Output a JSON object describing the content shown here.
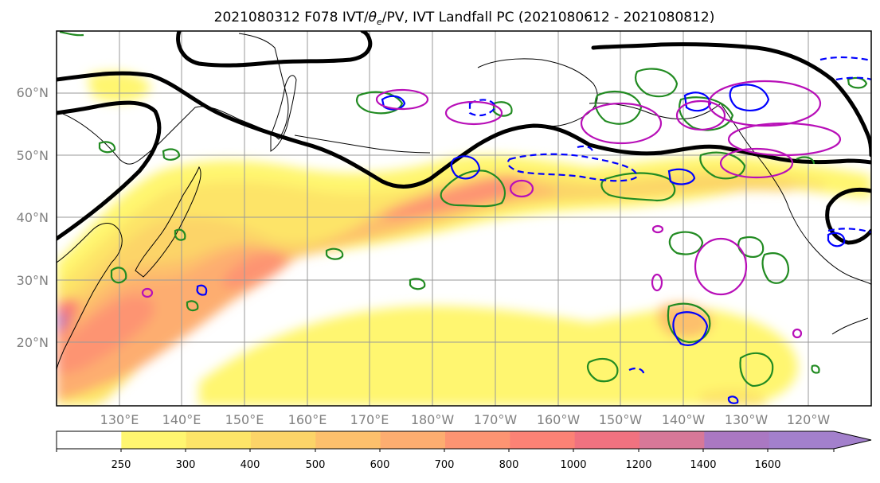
{
  "title": {
    "prefix": "2021080312 F078 IVT/",
    "theta": "θ",
    "theta_sub": "e",
    "suffix": "/PV, IVT Landfall PC (2021080612 - 2021080812)"
  },
  "map": {
    "lat_labels": [
      "60°N",
      "50°N",
      "40°N",
      "30°N",
      "20°N"
    ],
    "lon_labels": [
      "130°E",
      "140°E",
      "150°E",
      "160°E",
      "170°E",
      "180°W",
      "170°W",
      "160°W",
      "150°W",
      "140°W",
      "130°W",
      "120°W"
    ],
    "lat_values": [
      60,
      50,
      40,
      30,
      20
    ],
    "lon_values": [
      130,
      140,
      150,
      160,
      170,
      180,
      190,
      200,
      210,
      220,
      230,
      240
    ],
    "extent": {
      "lon": [
        120,
        250
      ],
      "lat": [
        10,
        70
      ]
    },
    "grid": true
  },
  "colorbar": {
    "tick_labels": [
      "250",
      "300",
      "400",
      "500",
      "600",
      "700",
      "800",
      "1000",
      "1200",
      "1400",
      "1600"
    ],
    "levels": [
      250,
      300,
      400,
      500,
      600,
      700,
      800,
      1000,
      1200,
      1400,
      1600
    ],
    "colors": [
      "#ffffff",
      "#fff670",
      "#fde468",
      "#fcd468",
      "#fdc06c",
      "#fdad70",
      "#fd9472",
      "#fc8275",
      "#f07280",
      "#d77898",
      "#aa78c2",
      "#a380cc"
    ],
    "extend": "max"
  },
  "contour_colors": {
    "theta_e": "#000000",
    "pv_positive": "#228B22",
    "pv_blue": "#0000ff",
    "pc_magenta": "#b80fb8"
  }
}
